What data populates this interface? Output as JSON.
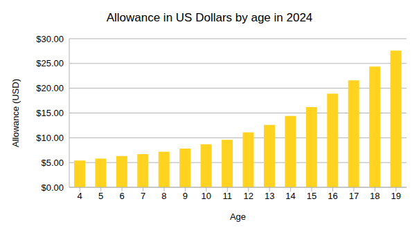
{
  "chart_data": {
    "type": "bar",
    "title": "Allowance in US Dollars by age in 2024",
    "x_label": "Age",
    "y_label": "Allowance (USD)",
    "categories": [
      "4",
      "5",
      "6",
      "7",
      "8",
      "9",
      "10",
      "11",
      "12",
      "13",
      "14",
      "15",
      "16",
      "17",
      "18",
      "19"
    ],
    "values": [
      5.4,
      5.8,
      6.3,
      6.7,
      7.2,
      7.8,
      8.7,
      9.6,
      11.1,
      12.6,
      14.4,
      16.2,
      18.9,
      21.6,
      24.4,
      27.6
    ],
    "color": "#ffd320",
    "ylim": [
      0,
      30
    ],
    "yticks": [
      {
        "value": 0,
        "label": "$0.00"
      },
      {
        "value": 5,
        "label": "$5.00"
      },
      {
        "value": 10,
        "label": "$10.00"
      },
      {
        "value": 15,
        "label": "$15.00"
      },
      {
        "value": 20,
        "label": "$20.00"
      },
      {
        "value": 25,
        "label": "$25.00"
      },
      {
        "value": 30,
        "label": "$30.00"
      }
    ],
    "grid": true
  }
}
